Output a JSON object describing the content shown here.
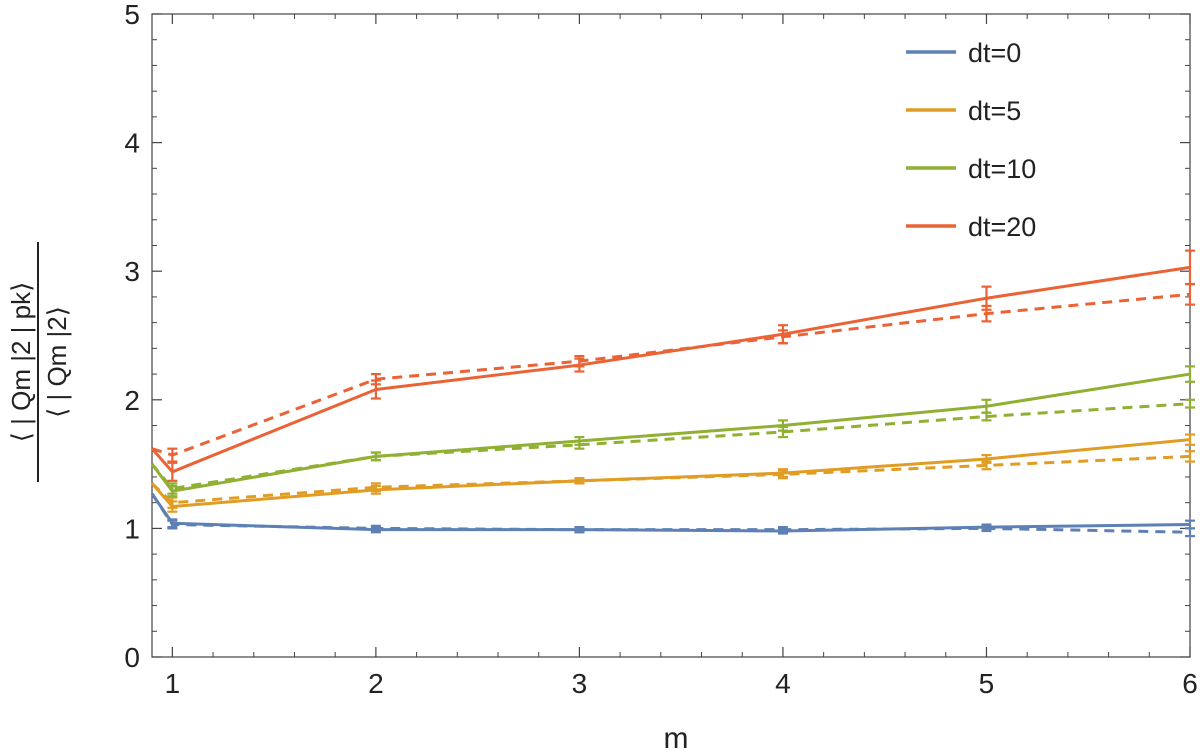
{
  "chart_data": {
    "type": "line",
    "title": "",
    "xlabel": "m",
    "ylabel": {
      "numerator": "⟨ | Qm |2 | pk⟩",
      "denominator": "⟨ | Qm |2⟩"
    },
    "xlim": [
      0.9,
      6
    ],
    "ylim": [
      0,
      5
    ],
    "x_ticks": [
      "1",
      "2",
      "3",
      "4",
      "5",
      "6"
    ],
    "y_ticks": [
      "0",
      "1",
      "2",
      "3",
      "4",
      "5"
    ],
    "legend_position": "top-right",
    "grid": false,
    "x": [
      1,
      2,
      3,
      4,
      5,
      6
    ],
    "series": [
      {
        "name": "dt=0",
        "color": "#5E81B5",
        "solid": [
          1.04,
          0.99,
          0.99,
          0.98,
          1.01,
          1.03
        ],
        "dashed": [
          1.03,
          1.0,
          0.99,
          0.99,
          1.0,
          0.97
        ],
        "solid_err": [
          0.03,
          0.02,
          0.02,
          0.02,
          0.02,
          0.03
        ],
        "dashed_err": [
          0.03,
          0.02,
          0.02,
          0.02,
          0.02,
          0.03
        ],
        "start": [
          0.9,
          1.27
        ]
      },
      {
        "name": "dt=5",
        "color": "#E19C24",
        "solid": [
          1.17,
          1.3,
          1.37,
          1.43,
          1.54,
          1.69
        ],
        "dashed": [
          1.2,
          1.32,
          1.37,
          1.42,
          1.49,
          1.56
        ],
        "solid_err": [
          0.04,
          0.03,
          0.02,
          0.03,
          0.03,
          0.04
        ],
        "dashed_err": [
          0.04,
          0.03,
          0.02,
          0.03,
          0.03,
          0.04
        ],
        "start": [
          0.9,
          1.35
        ]
      },
      {
        "name": "dt=10",
        "color": "#8FB032",
        "solid": [
          1.29,
          1.56,
          1.68,
          1.8,
          1.95,
          2.2
        ],
        "dashed": [
          1.31,
          1.56,
          1.65,
          1.75,
          1.87,
          1.97
        ],
        "solid_err": [
          0.04,
          0.03,
          0.03,
          0.04,
          0.05,
          0.06
        ],
        "dashed_err": [
          0.04,
          0.03,
          0.03,
          0.04,
          0.03,
          0.03
        ],
        "start": [
          0.9,
          1.5
        ]
      },
      {
        "name": "dt=20",
        "color": "#EB6235",
        "solid": [
          1.44,
          2.08,
          2.27,
          2.51,
          2.79,
          3.03
        ],
        "dashed": [
          1.57,
          2.16,
          2.3,
          2.49,
          2.67,
          2.82
        ],
        "solid_err": [
          0.07,
          0.07,
          0.05,
          0.07,
          0.09,
          0.13
        ],
        "dashed_err": [
          0.05,
          0.04,
          0.04,
          0.05,
          0.06,
          0.08
        ],
        "start": [
          0.9,
          1.62
        ]
      }
    ]
  }
}
